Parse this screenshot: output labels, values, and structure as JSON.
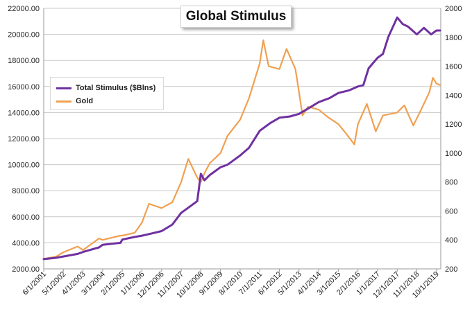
{
  "chart_data": {
    "type": "line",
    "title": "Global Stimulus",
    "x_ticks": [
      "6/1/2001",
      "5/1/2002",
      "4/1/2003",
      "3/1/2004",
      "2/1/2005",
      "1/1/2006",
      "12/1/2006",
      "11/1/2007",
      "10/1/2008",
      "9/1/2009",
      "8/1/2010",
      "7/1/2011",
      "6/1/2012",
      "5/1/2013",
      "4/1/2014",
      "3/1/2015",
      "2/1/2016",
      "1/1/2017",
      "12/1/2017",
      "11/1/2018",
      "10/1/2019"
    ],
    "y_left": {
      "min": 2000,
      "max": 22000,
      "step": 2000,
      "ticks": [
        "2000.00",
        "4000.00",
        "6000.00",
        "8000.00",
        "10000.00",
        "12000.00",
        "14000.00",
        "16000.00",
        "18000.00",
        "20000.00",
        "22000.00"
      ]
    },
    "y_right": {
      "min": 200,
      "max": 2000,
      "step": 200,
      "ticks": [
        "200",
        "400",
        "600",
        "800",
        "1000",
        "1200",
        "1400",
        "1600",
        "1800",
        "2000"
      ]
    },
    "grid": "horizontal",
    "legend_position": "left-middle",
    "series": [
      {
        "name": "Total Stimulus ($Blns)",
        "axis": "left",
        "color": "#7030a0",
        "x": [
          "6/1/2001",
          "1/1/2002",
          "5/1/2002",
          "1/1/2003",
          "4/1/2003",
          "1/1/2004",
          "3/1/2004",
          "1/1/2005",
          "2/1/2005",
          "9/1/2005",
          "1/1/2006",
          "6/1/2006",
          "12/1/2006",
          "6/1/2007",
          "11/1/2007",
          "4/1/2008",
          "8/1/2008",
          "10/1/2008",
          "12/1/2008",
          "3/1/2009",
          "9/1/2009",
          "1/1/2010",
          "8/1/2010",
          "1/1/2011",
          "7/1/2011",
          "1/1/2012",
          "6/1/2012",
          "12/1/2012",
          "5/1/2013",
          "10/1/2013",
          "4/1/2014",
          "10/1/2014",
          "3/1/2015",
          "9/1/2015",
          "2/1/2016",
          "5/1/2016",
          "8/1/2016",
          "1/1/2017",
          "4/1/2017",
          "7/1/2017",
          "12/1/2017",
          "3/1/2018",
          "6/1/2018",
          "11/1/2018",
          "3/1/2019",
          "7/1/2019",
          "10/1/2019",
          "12/1/2019"
        ],
        "values": [
          2750,
          2850,
          2950,
          3150,
          3300,
          3650,
          3850,
          4000,
          4250,
          4450,
          4550,
          4700,
          4900,
          5400,
          6300,
          6800,
          7200,
          9300,
          8800,
          9200,
          9800,
          10000,
          10700,
          11300,
          12600,
          13200,
          13600,
          13700,
          13900,
          14300,
          14800,
          15100,
          15500,
          15700,
          16000,
          16100,
          17400,
          18200,
          18500,
          19800,
          21300,
          20800,
          20600,
          20000,
          20500,
          20000,
          20300,
          20300
        ]
      },
      {
        "name": "Gold",
        "axis": "right",
        "color": "#f0a050",
        "x": [
          "6/1/2001",
          "1/1/2002",
          "5/1/2002",
          "1/1/2003",
          "4/1/2003",
          "1/1/2004",
          "3/1/2004",
          "1/1/2005",
          "2/1/2005",
          "9/1/2005",
          "1/1/2006",
          "5/1/2006",
          "12/1/2006",
          "6/1/2007",
          "11/1/2007",
          "3/1/2008",
          "8/1/2008",
          "10/1/2008",
          "12/1/2008",
          "3/1/2009",
          "9/1/2009",
          "1/1/2010",
          "8/1/2010",
          "1/1/2011",
          "7/1/2011",
          "9/1/2011",
          "12/1/2011",
          "6/1/2012",
          "10/1/2012",
          "3/1/2013",
          "5/1/2013",
          "7/1/2013",
          "10/1/2013",
          "4/1/2014",
          "9/1/2014",
          "3/1/2015",
          "7/1/2015",
          "12/1/2015",
          "2/1/2016",
          "7/1/2016",
          "12/1/2016",
          "4/1/2017",
          "12/1/2017",
          "4/1/2018",
          "9/1/2018",
          "1/1/2019",
          "6/1/2019",
          "8/1/2019",
          "10/1/2019",
          "12/1/2019"
        ],
        "values": [
          270,
          285,
          315,
          355,
          330,
          410,
          400,
          430,
          430,
          450,
          520,
          650,
          620,
          660,
          800,
          960,
          830,
          800,
          860,
          930,
          1000,
          1120,
          1230,
          1380,
          1620,
          1780,
          1600,
          1580,
          1720,
          1580,
          1420,
          1260,
          1320,
          1300,
          1250,
          1200,
          1140,
          1060,
          1200,
          1340,
          1150,
          1260,
          1280,
          1330,
          1190,
          1290,
          1420,
          1520,
          1480,
          1470
        ]
      }
    ]
  }
}
